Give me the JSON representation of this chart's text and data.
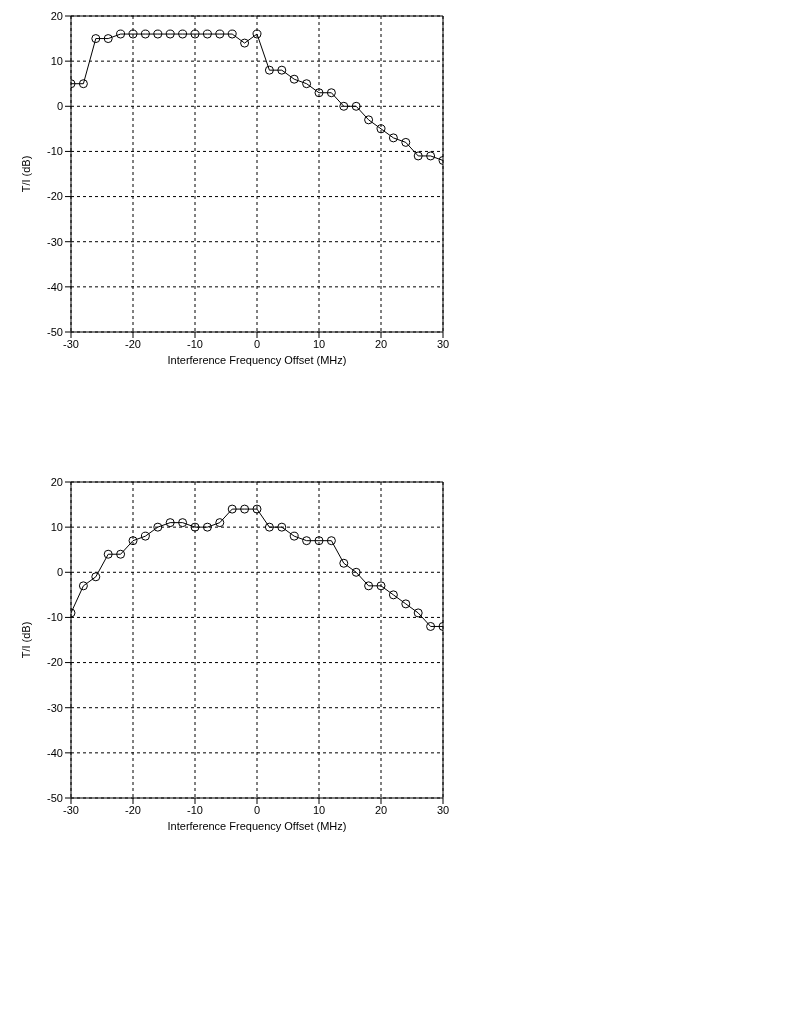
{
  "chart_data": [
    {
      "type": "line",
      "xlabel": "Interference Frequency Offset (MHz)",
      "ylabel": "T/I  (dB)",
      "x": [
        -30,
        -28,
        -26,
        -24,
        -22,
        -20,
        -18,
        -16,
        -14,
        -12,
        -10,
        -8,
        -6,
        -4,
        -2,
        0,
        2,
        4,
        6,
        8,
        10,
        12,
        14,
        16,
        18,
        20,
        22,
        24,
        26,
        28,
        30
      ],
      "series": [
        {
          "color": "#000000",
          "values": [
            5,
            5,
            15,
            15,
            16,
            16,
            16,
            16,
            16,
            16,
            16,
            16,
            16,
            16,
            14,
            16,
            8,
            8,
            6,
            5,
            3,
            3,
            0,
            0,
            -3,
            -5,
            -7,
            -8,
            -11,
            -11,
            -12
          ]
        }
      ],
      "xlim": [
        -30,
        30
      ],
      "xticks": [
        -30,
        -20,
        -10,
        0,
        10,
        20,
        30
      ],
      "ylim": [
        -50,
        20
      ],
      "yticks": [
        -50,
        -40,
        -30,
        -20,
        -10,
        0,
        10,
        20
      ],
      "grid": true,
      "marker": "circle",
      "line_style": "solid"
    },
    {
      "type": "line",
      "xlabel": "Interference Frequency Offset (MHz)",
      "ylabel": "T/I  (dB)",
      "x": [
        -30,
        -28,
        -26,
        -24,
        -22,
        -20,
        -18,
        -16,
        -14,
        -12,
        -10,
        -8,
        -6,
        -4,
        -2,
        0,
        2,
        4,
        6,
        8,
        10,
        12,
        14,
        16,
        18,
        20,
        22,
        24,
        26,
        28,
        30
      ],
      "series": [
        {
          "color": "#000000",
          "values": [
            -9,
            -3,
            -1,
            4,
            4,
            7,
            8,
            10,
            11,
            11,
            10,
            10,
            11,
            14,
            14,
            14,
            10,
            10,
            8,
            7,
            7,
            7,
            2,
            0,
            -3,
            -3,
            -5,
            -7,
            -9,
            -12,
            -12
          ]
        }
      ],
      "xlim": [
        -30,
        30
      ],
      "xticks": [
        -30,
        -20,
        -10,
        0,
        10,
        20,
        30
      ],
      "ylim": [
        -50,
        20
      ],
      "yticks": [
        -50,
        -40,
        -30,
        -20,
        -10,
        0,
        10,
        20
      ],
      "grid": true,
      "marker": "circle",
      "line_style": "solid"
    }
  ]
}
